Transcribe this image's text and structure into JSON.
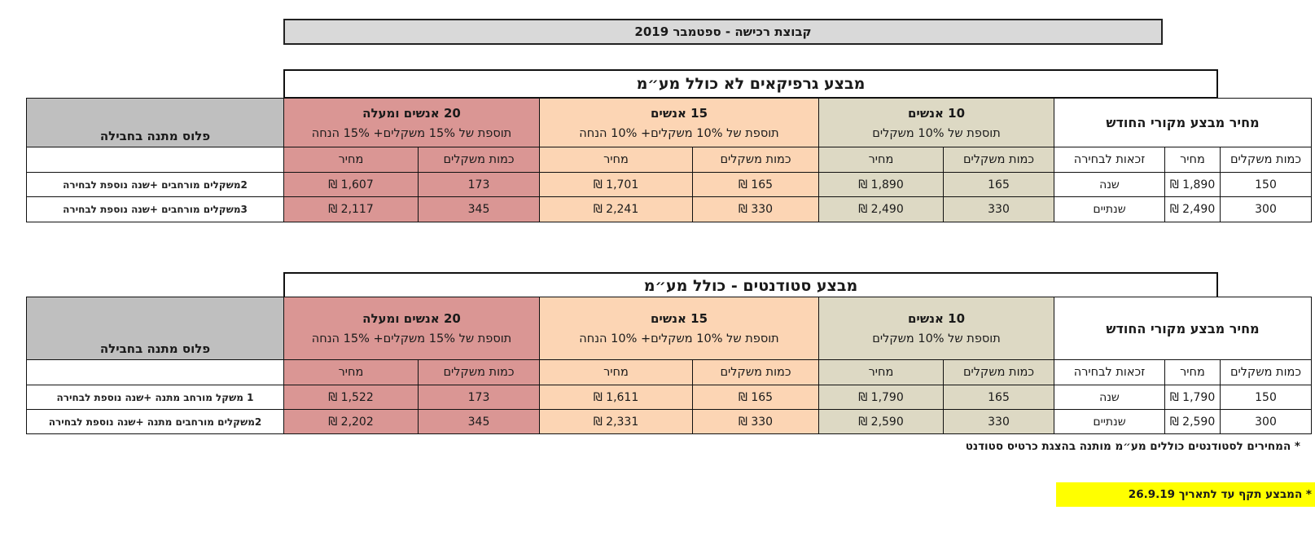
{
  "header": {
    "title": "קבוצת רכישה - ספטמבר 2019"
  },
  "tables": [
    {
      "section_title": "מבצע גרפיקאים לא כולל מע״מ",
      "original_price_title": "מחיר מבצע מקורי החודש",
      "gift_header": "פלוס מתנה בחבילה",
      "groups": [
        {
          "name": "10 אנשים",
          "sub": "תוספת של 10% משקלים"
        },
        {
          "name": "15 אנשים",
          "sub": "תוספת של 10% משקלים+ 10% הנחה"
        },
        {
          "name": "20 אנשים ומעלה",
          "sub": "תוספת של 15% משקלים+ 15% הנחה"
        }
      ],
      "col_headers": {
        "orig_qty": "כמות משקלים",
        "orig_price": "מחיר",
        "orig_rights": "זכאות לבחירה",
        "g10_qty": "כמות משקלים",
        "g10_price": "מחיר",
        "g15_qty": "כמות משקלים",
        "g15_price": "מחיר",
        "g20_qty": "כמות משקלים",
        "g20_price": "מחיר"
      },
      "rows": [
        {
          "orig_qty": "150",
          "orig_price": "1,890 ₪",
          "orig_rights": "שנה",
          "g10_qty": "165",
          "g10_price": "1,890 ₪",
          "g15_qty": "165 ₪",
          "g15_price": "1,701 ₪",
          "g20_qty": "173",
          "g20_price": "1,607 ₪",
          "gift": "2משקלים מורחבים  +שנה נוספת לבחירה"
        },
        {
          "orig_qty": "300",
          "orig_price": "2,490 ₪",
          "orig_rights": "שנתיים",
          "g10_qty": "330",
          "g10_price": "2,490 ₪",
          "g15_qty": "330 ₪",
          "g15_price": "2,241 ₪",
          "g20_qty": "345",
          "g20_price": "2,117 ₪",
          "gift": "3משקלים מורחבים +שנה נוספת לבחירה"
        }
      ]
    },
    {
      "section_title": "מבצע סטודנטים - כולל מע״מ",
      "original_price_title": "מחיר מבצע מקורי החודש",
      "gift_header": "פלוס מתנה בחבילה",
      "groups": [
        {
          "name": "10 אנשים",
          "sub": "תוספת של 10% משקלים"
        },
        {
          "name": "15 אנשים",
          "sub": "תוספת של 10% משקלים+ 10% הנחה"
        },
        {
          "name": "20 אנשים ומעלה",
          "sub": "תוספת של 15% משקלים+ 15% הנחה"
        }
      ],
      "col_headers": {
        "orig_qty": "כמות משקלים",
        "orig_price": "מחיר",
        "orig_rights": "זכאות לבחירה",
        "g10_qty": "כמות משקלים",
        "g10_price": "מחיר",
        "g15_qty": "כמות משקלים",
        "g15_price": "מחיר",
        "g20_qty": "כמות משקלים",
        "g20_price": "מחיר"
      },
      "rows": [
        {
          "orig_qty": "150",
          "orig_price": "1,790 ₪",
          "orig_rights": "שנה",
          "g10_qty": "165",
          "g10_price": "1,790 ₪",
          "g15_qty": "165 ₪",
          "g15_price": "1,611 ₪",
          "g20_qty": "173",
          "g20_price": "1,522 ₪",
          "gift": "1 משקל מורחב מתנה +שנה נוספת לבחירה"
        },
        {
          "orig_qty": "300",
          "orig_price": "2,590 ₪",
          "orig_rights": "שנתיים",
          "g10_qty": "330",
          "g10_price": "2,590 ₪",
          "g15_qty": "330 ₪",
          "g15_price": "2,331 ₪",
          "g20_qty": "345",
          "g20_price": "2,202 ₪",
          "gift": "2משקלים מורחבים מתנה +שנה נוספת לבחירה"
        }
      ]
    }
  ],
  "notes": {
    "student_note": "* המחירים לסטודנטים כוללים מע״מ מותנה בהצגת כרטיס סטודנט",
    "validity_note": "* המבצע תקף עד לתאריך 26.9.19"
  },
  "colors": {
    "title_bar": "#d9d9d9",
    "group_10": "#ddd9c4",
    "group_15": "#fcd5b4",
    "group_20": "#da9694",
    "gift_header": "#bfbfbf",
    "validity_highlight": "#ffff00"
  }
}
